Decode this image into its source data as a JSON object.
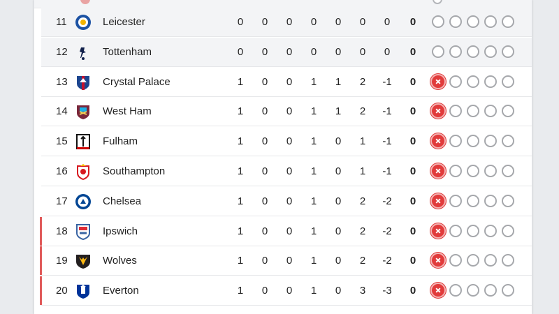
{
  "table": {
    "rows": [
      {
        "pos": "11",
        "team": "Leicester",
        "crest": "leicester-crest-icon",
        "p": "0",
        "w": "0",
        "d": "0",
        "l": "0",
        "gf": "0",
        "ga": "0",
        "gd": "0",
        "pts": "0",
        "form": [
          "none",
          "none",
          "none",
          "none",
          "none"
        ],
        "relegation": false
      },
      {
        "pos": "12",
        "team": "Tottenham",
        "crest": "tottenham-crest-icon",
        "p": "0",
        "w": "0",
        "d": "0",
        "l": "0",
        "gf": "0",
        "ga": "0",
        "gd": "0",
        "pts": "0",
        "form": [
          "none",
          "none",
          "none",
          "none",
          "none"
        ],
        "relegation": false
      },
      {
        "pos": "13",
        "team": "Crystal Palace",
        "crest": "crystal-palace-crest-icon",
        "p": "1",
        "w": "0",
        "d": "0",
        "l": "1",
        "gf": "1",
        "ga": "2",
        "gd": "-1",
        "pts": "0",
        "form": [
          "loss",
          "none",
          "none",
          "none",
          "none"
        ],
        "relegation": false
      },
      {
        "pos": "14",
        "team": "West Ham",
        "crest": "west-ham-crest-icon",
        "p": "1",
        "w": "0",
        "d": "0",
        "l": "1",
        "gf": "1",
        "ga": "2",
        "gd": "-1",
        "pts": "0",
        "form": [
          "loss",
          "none",
          "none",
          "none",
          "none"
        ],
        "relegation": false
      },
      {
        "pos": "15",
        "team": "Fulham",
        "crest": "fulham-crest-icon",
        "p": "1",
        "w": "0",
        "d": "0",
        "l": "1",
        "gf": "0",
        "ga": "1",
        "gd": "-1",
        "pts": "0",
        "form": [
          "loss",
          "none",
          "none",
          "none",
          "none"
        ],
        "relegation": false
      },
      {
        "pos": "16",
        "team": "Southampton",
        "crest": "southampton-crest-icon",
        "p": "1",
        "w": "0",
        "d": "0",
        "l": "1",
        "gf": "0",
        "ga": "1",
        "gd": "-1",
        "pts": "0",
        "form": [
          "loss",
          "none",
          "none",
          "none",
          "none"
        ],
        "relegation": false
      },
      {
        "pos": "17",
        "team": "Chelsea",
        "crest": "chelsea-crest-icon",
        "p": "1",
        "w": "0",
        "d": "0",
        "l": "1",
        "gf": "0",
        "ga": "2",
        "gd": "-2",
        "pts": "0",
        "form": [
          "loss",
          "none",
          "none",
          "none",
          "none"
        ],
        "relegation": false
      },
      {
        "pos": "18",
        "team": "Ipswich",
        "crest": "ipswich-crest-icon",
        "p": "1",
        "w": "0",
        "d": "0",
        "l": "1",
        "gf": "0",
        "ga": "2",
        "gd": "-2",
        "pts": "0",
        "form": [
          "loss",
          "none",
          "none",
          "none",
          "none"
        ],
        "relegation": true
      },
      {
        "pos": "19",
        "team": "Wolves",
        "crest": "wolves-crest-icon",
        "p": "1",
        "w": "0",
        "d": "0",
        "l": "1",
        "gf": "0",
        "ga": "2",
        "gd": "-2",
        "pts": "0",
        "form": [
          "loss",
          "none",
          "none",
          "none",
          "none"
        ],
        "relegation": true
      },
      {
        "pos": "20",
        "team": "Everton",
        "crest": "everton-crest-icon",
        "p": "1",
        "w": "0",
        "d": "0",
        "l": "1",
        "gf": "0",
        "ga": "3",
        "gd": "-3",
        "pts": "0",
        "form": [
          "loss",
          "none",
          "none",
          "none",
          "none"
        ],
        "relegation": true
      }
    ]
  },
  "colors": {
    "relegation": "#e05a5a",
    "loss": "#e13b3b",
    "grey_row": "#f3f4f6"
  }
}
